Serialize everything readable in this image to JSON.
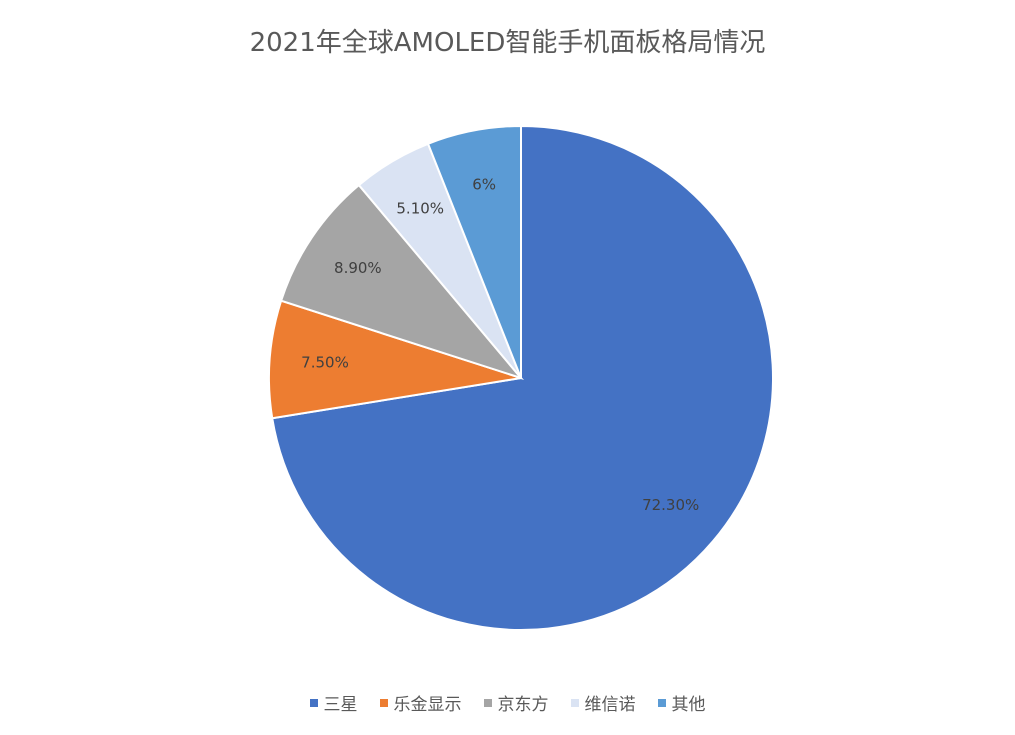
{
  "chart_data": {
    "type": "pie",
    "title": "2021年全球AMOLED智能手机面板格局情况",
    "start_angle_deg": 0,
    "direction": "clockwise",
    "legend_position": "bottom",
    "slices": [
      {
        "label": "三星",
        "value": 72.3,
        "data_label": "72.30%",
        "color": "#4472C4"
      },
      {
        "label": "乐金显示",
        "value": 7.5,
        "data_label": "7.50%",
        "color": "#ED7D31"
      },
      {
        "label": "京东方",
        "value": 8.9,
        "data_label": "8.90%",
        "color": "#A5A5A5"
      },
      {
        "label": "维信诺",
        "value": 5.1,
        "data_label": "5.10%",
        "color": "#DAE3F3"
      },
      {
        "label": "其他",
        "value": 6,
        "data_label": "6%",
        "color": "#5B9BD5"
      }
    ]
  }
}
